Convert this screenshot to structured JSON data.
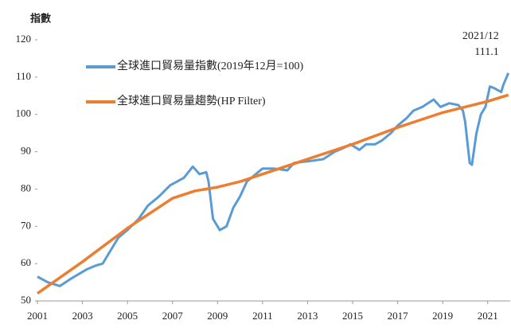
{
  "chart_data": {
    "type": "line",
    "ylabel": "指數",
    "annotations": [
      "2021/12",
      "111.1"
    ],
    "legend": "upper left",
    "grid": false,
    "xlim": [
      2001,
      2022
    ],
    "xticks": [
      2001,
      2003,
      2005,
      2007,
      2009,
      2011,
      2013,
      2015,
      2017,
      2019,
      2021
    ],
    "ylim": [
      50,
      120
    ],
    "yticks": [
      50,
      60,
      70,
      80,
      90,
      100,
      110,
      120
    ],
    "series": [
      {
        "name": "全球進口貿易量指數(2019年12月=100)",
        "color": "#5b9bd5",
        "x": [
          2001,
          2001.46,
          2002,
          2002.5,
          2003.2,
          2003.6,
          2003.9,
          2004.3,
          2004.6,
          2005,
          2005.5,
          2005.9,
          2006.4,
          2006.9,
          2007.5,
          2007.9,
          2008.2,
          2008.5,
          2008.6,
          2008.8,
          2009.1,
          2009.4,
          2009.7,
          2010,
          2010.3,
          2010.7,
          2011,
          2011.5,
          2012.1,
          2012.4,
          2013.1,
          2013.7,
          2014.2,
          2014.6,
          2014.9,
          2015.3,
          2015.6,
          2016,
          2016.3,
          2016.7,
          2017,
          2017.4,
          2017.7,
          2018.1,
          2018.6,
          2018.9,
          2019.3,
          2019.7,
          2019.9,
          2020,
          2020.2,
          2020.3,
          2020.5,
          2020.7,
          2020.9,
          2021.1,
          2021.3,
          2021.6,
          2021.7,
          2021.92
        ],
        "values": [
          56.5,
          55,
          54,
          56,
          58.5,
          59.5,
          60,
          64,
          67,
          69,
          72,
          75.5,
          78,
          81,
          83,
          86,
          84,
          84.5,
          82,
          72,
          69,
          70,
          75,
          78,
          82,
          84,
          85.5,
          85.5,
          85,
          87,
          87.5,
          88,
          90,
          91,
          92,
          90.5,
          92,
          92,
          93,
          95,
          97,
          99,
          101,
          102,
          104,
          102,
          103,
          102.5,
          101,
          98,
          87,
          86.5,
          95,
          100,
          102,
          107.5,
          107,
          106,
          108,
          111.1
        ]
      },
      {
        "name": "全球進口貿易量趨勢(HP Filter)",
        "color": "#ed7d31",
        "x": [
          2001,
          2003,
          2005,
          2007,
          2008,
          2009,
          2010,
          2011,
          2013,
          2015,
          2017,
          2019,
          2021,
          2021.92
        ],
        "values": [
          52,
          60.5,
          69.5,
          77.5,
          79.5,
          80.5,
          82,
          84,
          88,
          92,
          96.5,
          100.5,
          103.5,
          105.2
        ]
      }
    ]
  }
}
